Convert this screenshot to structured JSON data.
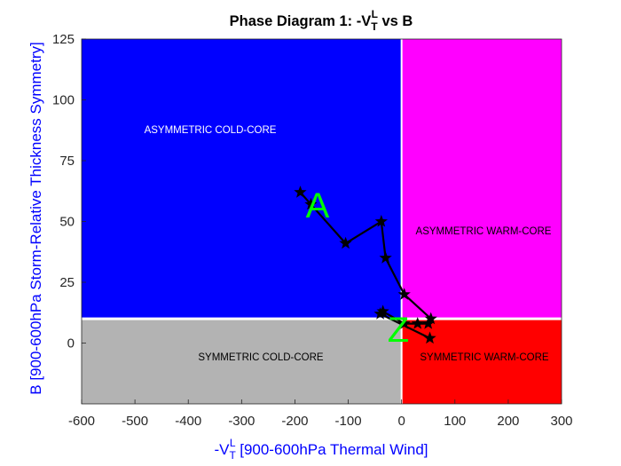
{
  "chart_data": {
    "type": "line",
    "title": {
      "prefix": "Phase Diagram 1: -V",
      "sub": "T",
      "sup": "L",
      "suffix": " vs B"
    },
    "xlabel": {
      "prefix": "-V",
      "sub": "T",
      "sup": "L",
      "suffix": " [900-600hPa Thermal Wind]"
    },
    "ylabel": "B [900-600hPa Storm-Relative Thickness Symmetry]",
    "xlim": [
      -600,
      300
    ],
    "ylim": [
      -25,
      125
    ],
    "xticks": [
      "-600",
      "-500",
      "-400",
      "-300",
      "-200",
      "-100",
      "0",
      "100",
      "200",
      "300"
    ],
    "yticks": [
      "0",
      "25",
      "50",
      "75",
      "100",
      "125"
    ],
    "grid": false,
    "regions": [
      {
        "label": "ASYMMETRIC COLD-CORE",
        "color": "#0000ff",
        "text_color": "#ffffff"
      },
      {
        "label": "ASYMMETRIC WARM-CORE",
        "color": "#ff00ff",
        "text_color": "#000000"
      },
      {
        "label": "SYMMETRIC COLD-CORE",
        "color": "#b3b3b3",
        "text_color": "#000000"
      },
      {
        "label": "SYMMETRIC WARM-CORE",
        "color": "#ff0000",
        "text_color": "#000000"
      }
    ],
    "thresholds": {
      "x": 0,
      "y": 10
    },
    "series": [
      {
        "color": "#000000",
        "x": [
          -190,
          -170,
          -105,
          -38,
          -30,
          5,
          55,
          50,
          30,
          5,
          -35,
          -40,
          53
        ],
        "y": [
          62,
          57,
          41,
          50,
          35,
          20,
          10,
          8,
          8,
          8,
          13,
          12,
          2
        ]
      }
    ],
    "start_marker": "A",
    "end_marker": "Z"
  }
}
